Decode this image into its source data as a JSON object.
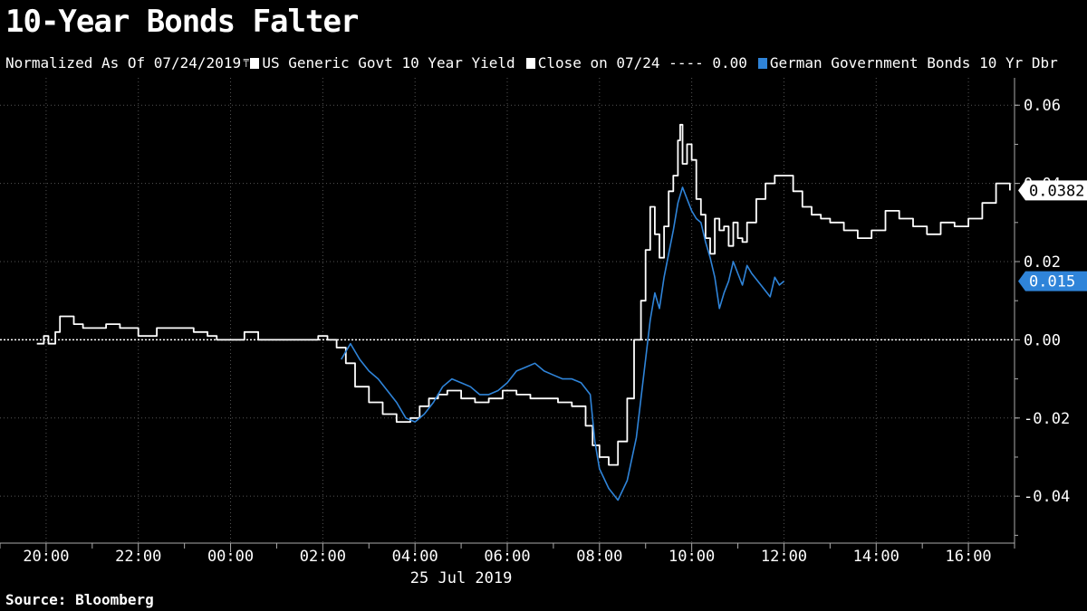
{
  "header": {
    "title": "10-Year Bonds Falter"
  },
  "legend": {
    "normalized_label": "Normalized As Of 07/24/2019",
    "us_label": "US Generic Govt 10 Year Yield",
    "close_label": "Close on 07/24 ---- 0.00",
    "german_label": "German Government Bonds 10 Yr Dbr"
  },
  "footer": {
    "source": "Source: Bloomberg"
  },
  "colors": {
    "us": "#ffffff",
    "close": "#ffffff",
    "german": "#2f84d9",
    "grid": "#555555",
    "background": "#000000"
  },
  "chart_data": {
    "type": "line",
    "title": "10-Year Bonds Falter",
    "xlabel": "25 Jul 2019",
    "ylabel": "",
    "x_unit": "hours relative to 00:00 on 25 Jul 2019 (negative = 24 Jul)",
    "x_ticks": [
      {
        "x": -4,
        "label": "20:00"
      },
      {
        "x": -2,
        "label": "22:00"
      },
      {
        "x": 0,
        "label": "00:00"
      },
      {
        "x": 2,
        "label": "02:00"
      },
      {
        "x": 4,
        "label": "04:00"
      },
      {
        "x": 6,
        "label": "06:00"
      },
      {
        "x": 8,
        "label": "08:00"
      },
      {
        "x": 10,
        "label": "10:00"
      },
      {
        "x": 12,
        "label": "12:00"
      },
      {
        "x": 14,
        "label": "14:00"
      },
      {
        "x": 16,
        "label": "16:00"
      }
    ],
    "date_label": "25 Jul 2019",
    "y_ticks": [
      0.06,
      0.04,
      0.02,
      0.0,
      -0.02,
      -0.04
    ],
    "y_tick_labels": [
      "0.06",
      "0.04",
      "0.02",
      "0.00",
      "-0.02",
      "-0.04"
    ],
    "ylim": [
      -0.052,
      0.067
    ],
    "xlim": [
      -5.0,
      17.0
    ],
    "grid": true,
    "baseline": 0.0,
    "series": [
      {
        "name": "US Generic Govt 10 Year Yield",
        "color": "#ffffff",
        "step": true,
        "last_label": "0.0382",
        "x": [
          -4.2,
          -4.05,
          -3.95,
          -3.8,
          -3.7,
          -3.4,
          -3.2,
          -3.0,
          -2.7,
          -2.4,
          -2.2,
          -2.0,
          -1.6,
          -1.2,
          -0.8,
          -0.5,
          -0.3,
          0.0,
          0.3,
          0.6,
          1.0,
          1.3,
          1.6,
          1.9,
          2.1,
          2.3,
          2.5,
          2.7,
          3.0,
          3.3,
          3.6,
          3.9,
          4.1,
          4.3,
          4.5,
          4.7,
          5.0,
          5.3,
          5.6,
          5.9,
          6.2,
          6.5,
          6.8,
          7.1,
          7.4,
          7.7,
          7.85,
          8.0,
          8.2,
          8.4,
          8.6,
          8.75,
          8.9,
          9.0,
          9.1,
          9.2,
          9.3,
          9.4,
          9.5,
          9.6,
          9.7,
          9.75,
          9.8,
          9.9,
          10.0,
          10.1,
          10.2,
          10.3,
          10.4,
          10.5,
          10.6,
          10.7,
          10.8,
          10.9,
          11.0,
          11.1,
          11.2,
          11.4,
          11.6,
          11.8,
          12.0,
          12.2,
          12.4,
          12.6,
          12.8,
          13.0,
          13.3,
          13.6,
          13.9,
          14.2,
          14.5,
          14.8,
          15.1,
          15.4,
          15.7,
          16.0,
          16.3,
          16.6,
          16.9
        ],
        "y": [
          -0.001,
          0.001,
          -0.001,
          0.002,
          0.006,
          0.004,
          0.003,
          0.003,
          0.004,
          0.003,
          0.003,
          0.001,
          0.003,
          0.003,
          0.002,
          0.001,
          0.0,
          0.0,
          0.002,
          0.0,
          0.0,
          0.0,
          0.0,
          0.001,
          0.0,
          -0.002,
          -0.006,
          -0.012,
          -0.016,
          -0.019,
          -0.021,
          -0.02,
          -0.017,
          -0.015,
          -0.014,
          -0.013,
          -0.015,
          -0.016,
          -0.015,
          -0.013,
          -0.014,
          -0.015,
          -0.015,
          -0.016,
          -0.017,
          -0.022,
          -0.027,
          -0.03,
          -0.032,
          -0.026,
          -0.015,
          0.0,
          0.01,
          0.023,
          0.034,
          0.027,
          0.021,
          0.029,
          0.038,
          0.042,
          0.051,
          0.055,
          0.045,
          0.05,
          0.046,
          0.036,
          0.032,
          0.026,
          0.022,
          0.031,
          0.028,
          0.029,
          0.024,
          0.03,
          0.026,
          0.025,
          0.03,
          0.036,
          0.04,
          0.042,
          0.042,
          0.038,
          0.034,
          0.032,
          0.031,
          0.03,
          0.028,
          0.026,
          0.028,
          0.033,
          0.031,
          0.029,
          0.027,
          0.03,
          0.029,
          0.031,
          0.035,
          0.04,
          0.0382
        ]
      },
      {
        "name": "German Government Bonds 10 Yr Dbr",
        "color": "#2f84d9",
        "step": false,
        "last_label": "0.015",
        "x": [
          2.4,
          2.6,
          2.8,
          3.0,
          3.2,
          3.4,
          3.6,
          3.8,
          4.0,
          4.2,
          4.4,
          4.6,
          4.8,
          5.0,
          5.2,
          5.4,
          5.6,
          5.8,
          6.0,
          6.2,
          6.4,
          6.6,
          6.8,
          7.0,
          7.2,
          7.4,
          7.6,
          7.8,
          7.9,
          8.0,
          8.2,
          8.4,
          8.6,
          8.8,
          8.9,
          9.0,
          9.1,
          9.2,
          9.3,
          9.4,
          9.5,
          9.6,
          9.7,
          9.8,
          9.9,
          10.0,
          10.1,
          10.2,
          10.3,
          10.4,
          10.5,
          10.6,
          10.7,
          10.8,
          10.9,
          11.0,
          11.1,
          11.2,
          11.3,
          11.5,
          11.7,
          11.8,
          11.9,
          12.0
        ],
        "y": [
          -0.005,
          -0.001,
          -0.005,
          -0.008,
          -0.01,
          -0.013,
          -0.016,
          -0.02,
          -0.021,
          -0.019,
          -0.016,
          -0.012,
          -0.01,
          -0.011,
          -0.012,
          -0.014,
          -0.014,
          -0.013,
          -0.011,
          -0.008,
          -0.007,
          -0.006,
          -0.008,
          -0.009,
          -0.01,
          -0.01,
          -0.011,
          -0.014,
          -0.026,
          -0.033,
          -0.038,
          -0.041,
          -0.036,
          -0.025,
          -0.015,
          -0.005,
          0.005,
          0.012,
          0.008,
          0.016,
          0.022,
          0.028,
          0.035,
          0.039,
          0.036,
          0.033,
          0.031,
          0.03,
          0.025,
          0.021,
          0.016,
          0.008,
          0.012,
          0.015,
          0.02,
          0.017,
          0.014,
          0.019,
          0.017,
          0.014,
          0.011,
          0.016,
          0.014,
          0.015
        ]
      }
    ]
  }
}
